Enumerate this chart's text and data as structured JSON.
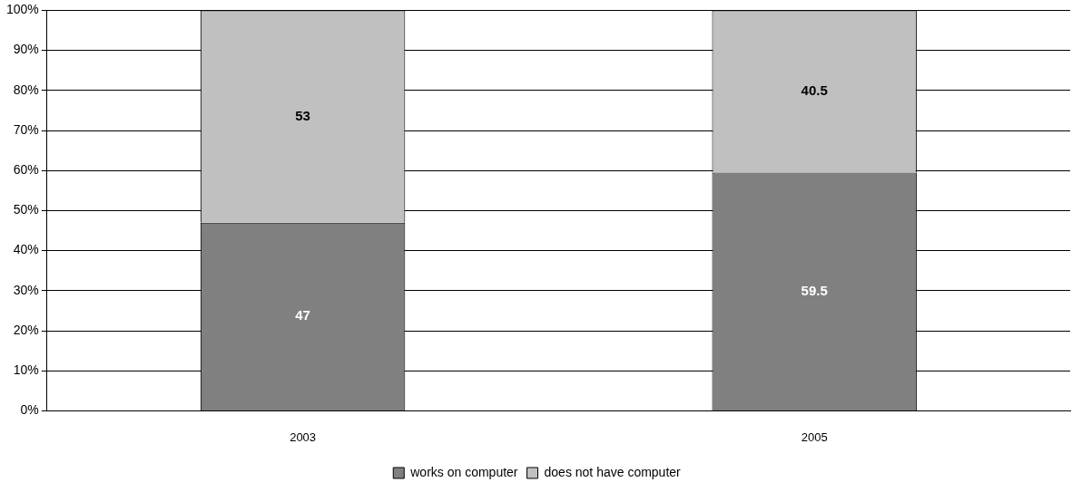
{
  "chart_data": {
    "type": "bar",
    "stacked": true,
    "categories": [
      "2003",
      "2005"
    ],
    "series": [
      {
        "name": "works on computer",
        "color": "#808080",
        "values": [
          47,
          59.5
        ]
      },
      {
        "name": "does not have computer",
        "color": "#c0c0c0",
        "values": [
          53,
          40.5
        ]
      }
    ],
    "ylim": [
      0,
      100
    ],
    "yticks": [
      {
        "value": 0,
        "label": "0%"
      },
      {
        "value": 10,
        "label": "10%"
      },
      {
        "value": 20,
        "label": "20%"
      },
      {
        "value": 30,
        "label": "30%"
      },
      {
        "value": 40,
        "label": "40%"
      },
      {
        "value": 50,
        "label": "50%"
      },
      {
        "value": 60,
        "label": "60%"
      },
      {
        "value": 70,
        "label": "70%"
      },
      {
        "value": 80,
        "label": "80%"
      },
      {
        "value": 90,
        "label": "90%"
      },
      {
        "value": 100,
        "label": "100%"
      }
    ],
    "grid": "y",
    "legend": "bottom",
    "data_labels": true
  }
}
